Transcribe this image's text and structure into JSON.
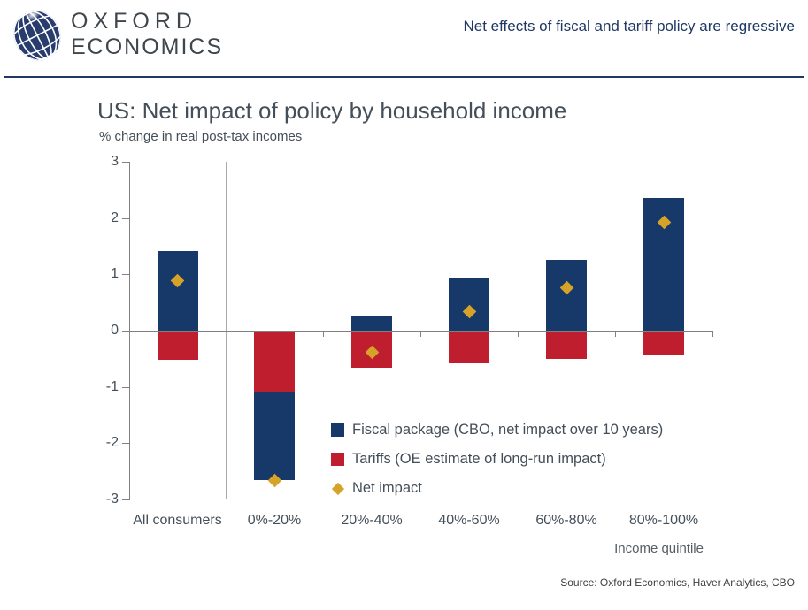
{
  "header": {
    "logo_line1": "OXFORD",
    "logo_line2": "ECONOMICS",
    "headline": "Net effects of fiscal and tariff policy are regressive",
    "brand_navy": "#1f3864"
  },
  "chart_data": {
    "type": "bar",
    "stacked": true,
    "title": "US: Net impact of policy by household income",
    "subtitle": "% change in real post-tax incomes",
    "xlabel": "Income quintile",
    "ylim": [
      -3,
      3
    ],
    "y_ticks": [
      3,
      2,
      1,
      0,
      -1,
      -2,
      -3
    ],
    "grid": "zero-line-only",
    "legend_position": "inside-right",
    "categories": [
      "All consumers",
      "0%-20%",
      "20%-40%",
      "40%-60%",
      "60%-80%",
      "80%-100%"
    ],
    "series": [
      {
        "name": "Fiscal package (CBO, net impact over 10 years)",
        "type": "bar",
        "color": "#16396a",
        "values": [
          1.41,
          -1.58,
          0.27,
          0.92,
          1.26,
          2.36
        ]
      },
      {
        "name": "Tariffs (OE estimate of long-run impact)",
        "type": "bar",
        "color": "#be1e2d",
        "values": [
          -0.52,
          -1.08,
          -0.66,
          -0.58,
          -0.51,
          -0.43
        ]
      },
      {
        "name": "Net impact",
        "type": "scatter-diamond",
        "color": "#d7a228",
        "values": [
          0.89,
          -2.66,
          -0.39,
          0.33,
          0.76,
          1.93
        ]
      }
    ]
  },
  "source": "Source: Oxford Economics, Haver Analytics, CBO"
}
